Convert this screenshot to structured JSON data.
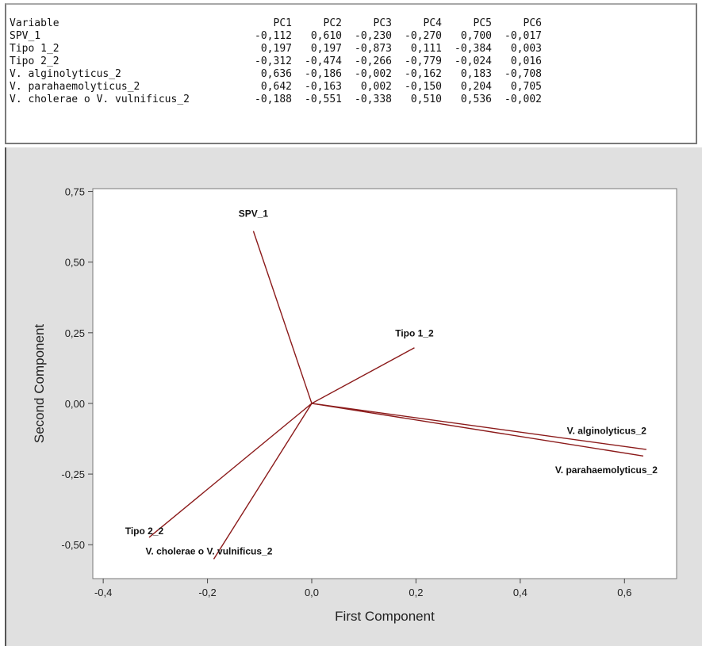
{
  "table": {
    "header": [
      "Variable",
      "PC1",
      "PC2",
      "PC3",
      "PC4",
      "PC5",
      "PC6"
    ],
    "rows": [
      [
        "SPV_1",
        "-0,112",
        "0,610",
        "-0,230",
        "-0,270",
        "0,700",
        "-0,017"
      ],
      [
        "Tipo 1_2",
        "0,197",
        "0,197",
        "-0,873",
        "0,111",
        "-0,384",
        "0,003"
      ],
      [
        "Tipo 2_2",
        "-0,312",
        "-0,474",
        "-0,266",
        "-0,779",
        "-0,024",
        "0,016"
      ],
      [
        "V. alginolyticus_2",
        "0,636",
        "-0,186",
        "-0,002",
        "-0,162",
        "0,183",
        "-0,708"
      ],
      [
        "V. parahaemolyticus_2",
        "0,642",
        "-0,163",
        "0,002",
        "-0,150",
        "0,204",
        "0,705"
      ],
      [
        "V. cholerae o V. vulnificus_2",
        "-0,188",
        "-0,551",
        "-0,338",
        "0,510",
        "0,536",
        "-0,002"
      ]
    ]
  },
  "chart_data": {
    "type": "scatter",
    "subtype": "loading-plot",
    "title": "",
    "xlabel": "First Component",
    "ylabel": "Second Component",
    "xlim": [
      -0.42,
      0.7
    ],
    "ylim": [
      -0.62,
      0.76
    ],
    "xticks": [
      -0.4,
      -0.2,
      0.0,
      0.2,
      0.4,
      0.6
    ],
    "xtick_labels": [
      "-0,4",
      "-0,2",
      "0,0",
      "0,2",
      "0,4",
      "0,6"
    ],
    "yticks": [
      -0.5,
      -0.25,
      0.0,
      0.25,
      0.5,
      0.75
    ],
    "ytick_labels": [
      "-0,50",
      "-0,25",
      "0,00",
      "0,25",
      "0,50",
      "0,75"
    ],
    "grid": false,
    "line_color": "#8b1a1a",
    "vectors": [
      {
        "label": "SPV_1",
        "x": -0.112,
        "y": 0.61
      },
      {
        "label": "Tipo 1_2",
        "x": 0.197,
        "y": 0.197
      },
      {
        "label": "Tipo 2_2",
        "x": -0.312,
        "y": -0.474
      },
      {
        "label": "V. alginolyticus_2",
        "x": 0.636,
        "y": -0.186
      },
      {
        "label": "V. parahaemolyticus_2",
        "x": 0.642,
        "y": -0.163
      },
      {
        "label": "V. cholerae o V. vulnificus_2",
        "x": -0.188,
        "y": -0.551
      }
    ]
  }
}
